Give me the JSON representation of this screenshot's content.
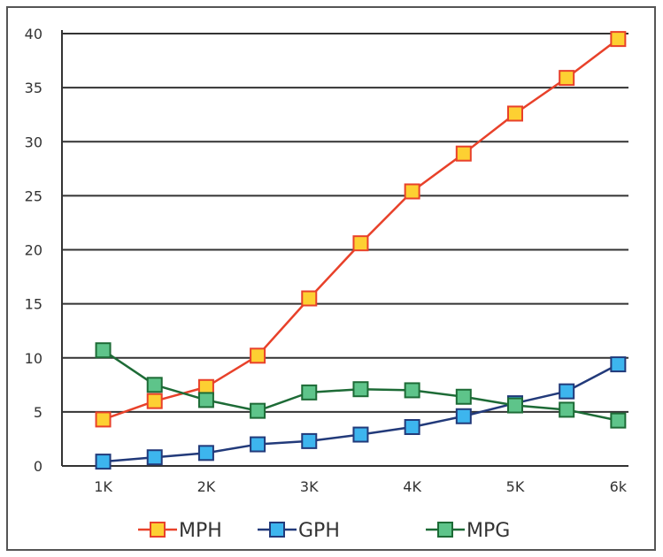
{
  "chart_data": {
    "type": "line",
    "title": "",
    "xlabel": "",
    "ylabel": "",
    "ylim": [
      0,
      40
    ],
    "y_ticks": [
      "0",
      "5",
      "10",
      "15",
      "20",
      "25",
      "30",
      "35",
      "40"
    ],
    "x_tick_labels": [
      "1K",
      "2K",
      "3K",
      "4K",
      "5K",
      "6k"
    ],
    "grid": "horizontal",
    "legend_position": "bottom",
    "x": [
      1,
      1.5,
      2,
      2.5,
      3,
      3.5,
      4,
      4.5,
      5,
      5.5,
      6
    ],
    "series": [
      {
        "name": "MPH",
        "line_color": "#e8412a",
        "marker_fill": "#fdd032",
        "marker_stroke": "#e8412a",
        "values": [
          4.3,
          6.0,
          7.3,
          10.2,
          15.5,
          20.6,
          25.4,
          28.9,
          32.6,
          35.9,
          39.5
        ]
      },
      {
        "name": "GPH",
        "line_color": "#223a7a",
        "marker_fill": "#3db5ee",
        "marker_stroke": "#223a7a",
        "values": [
          0.4,
          0.8,
          1.2,
          2.0,
          2.3,
          2.9,
          3.6,
          4.6,
          5.8,
          6.9,
          9.4
        ]
      },
      {
        "name": "MPG",
        "line_color": "#1d6b36",
        "marker_fill": "#5ec48a",
        "marker_stroke": "#1d6b36",
        "values": [
          10.7,
          7.5,
          6.1,
          5.1,
          6.8,
          7.1,
          7.0,
          6.4,
          5.6,
          5.2,
          4.2
        ]
      }
    ]
  }
}
